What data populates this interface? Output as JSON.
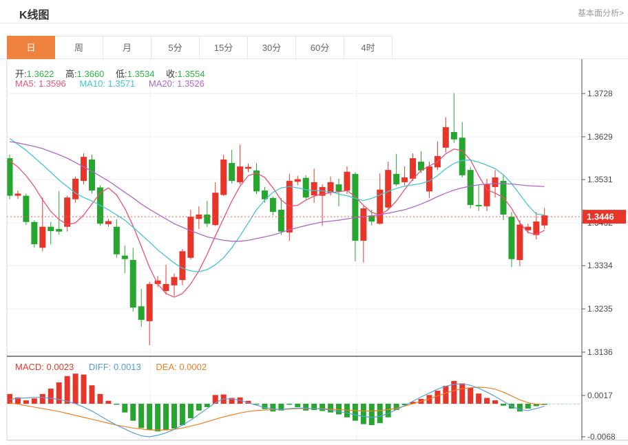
{
  "header": {
    "title": "K线图",
    "link": "基本面分析>"
  },
  "tabs": {
    "items": [
      "日",
      "周",
      "月",
      "5分",
      "15分",
      "30分",
      "60分",
      "4时"
    ],
    "selected": "日"
  },
  "info": {
    "ohlc": [
      {
        "label": "开:",
        "value": "1.3622"
      },
      {
        "label": "高:",
        "value": "1.3660"
      },
      {
        "label": "低:",
        "value": "1.3534"
      },
      {
        "label": "收:",
        "value": "1.3554"
      }
    ],
    "ma": [
      {
        "text": "MA5: 1.3596"
      },
      {
        "text": "MA10: 1.3571"
      },
      {
        "text": "MA20: 1.3526"
      }
    ]
  },
  "macd_info": [
    {
      "text": "MACD: 0.0023"
    },
    {
      "text": "DIFF: 0.0013"
    },
    {
      "text": "DEA: 0.0002"
    }
  ],
  "chart_data": {
    "type": "candlestick",
    "convention": "red=up green=down (CN)",
    "price_ticks": [
      "1.3728",
      "1.3629",
      "1.3531",
      "1.3432",
      "1.3334",
      "1.3235",
      "1.3136"
    ],
    "price_range": [
      1.3136,
      1.3728
    ],
    "current_price": "1.3446",
    "hidden_tick_under_badge": "1.3432",
    "grid": {
      "vertical_x": [
        218,
        518
      ]
    },
    "candles": [
      [
        1.358,
        1.3588,
        1.3486,
        1.3494
      ],
      [
        1.3494,
        1.3506,
        1.3487,
        1.3499
      ],
      [
        1.3494,
        1.3499,
        1.3427,
        1.3434
      ],
      [
        1.3434,
        1.3438,
        1.3375,
        1.3383
      ],
      [
        1.3375,
        1.349,
        1.3367,
        1.3423
      ],
      [
        1.3423,
        1.3434,
        1.3383,
        1.3413
      ],
      [
        1.3418,
        1.3505,
        1.3405,
        1.3412
      ],
      [
        1.3423,
        1.3494,
        1.3412,
        1.349
      ],
      [
        1.3486,
        1.3538,
        1.3478,
        1.3533
      ],
      [
        1.3528,
        1.3591,
        1.352,
        1.3583
      ],
      [
        1.3577,
        1.3588,
        1.3499,
        1.3506
      ],
      [
        1.3513,
        1.3518,
        1.3425,
        1.343
      ],
      [
        1.3429,
        1.3441,
        1.3423,
        1.3436
      ],
      [
        1.3423,
        1.344,
        1.3352,
        1.336
      ],
      [
        1.3357,
        1.338,
        1.3317,
        1.3349
      ],
      [
        1.3347,
        1.3375,
        1.3229,
        1.3238
      ],
      [
        1.3241,
        1.3281,
        1.3194,
        1.321
      ],
      [
        1.3207,
        1.3297,
        1.3152,
        1.3292
      ],
      [
        1.3292,
        1.331,
        1.3285,
        1.33
      ],
      [
        1.3276,
        1.3336,
        1.3268,
        1.3292
      ],
      [
        1.3289,
        1.3316,
        1.3265,
        1.3308
      ],
      [
        1.3301,
        1.3372,
        1.3289,
        1.3367
      ],
      [
        1.3352,
        1.3462,
        1.3348,
        1.3446
      ],
      [
        1.3441,
        1.347,
        1.3418,
        1.3451
      ],
      [
        1.3451,
        1.3482,
        1.3423,
        1.343
      ],
      [
        1.3427,
        1.3525,
        1.3425,
        1.3501
      ],
      [
        1.3496,
        1.3588,
        1.3493,
        1.3577
      ],
      [
        1.3569,
        1.3599,
        1.3522,
        1.3528
      ],
      [
        1.3525,
        1.3611,
        1.352,
        1.3561
      ],
      [
        1.3556,
        1.3568,
        1.3548,
        1.356
      ],
      [
        1.3552,
        1.3569,
        1.3498,
        1.3504
      ],
      [
        1.3506,
        1.3514,
        1.3478,
        1.3486
      ],
      [
        1.3489,
        1.3492,
        1.3449,
        1.3457
      ],
      [
        1.3462,
        1.3489,
        1.3404,
        1.3412
      ],
      [
        1.341,
        1.3544,
        1.3391,
        1.3528
      ],
      [
        1.3526,
        1.354,
        1.3518,
        1.3532
      ],
      [
        1.3535,
        1.3541,
        1.3486,
        1.349
      ],
      [
        1.3495,
        1.3556,
        1.3478,
        1.3525
      ],
      [
        1.3494,
        1.352,
        1.3425,
        1.3514
      ],
      [
        1.3501,
        1.3538,
        1.3495,
        1.3525
      ],
      [
        1.352,
        1.3533,
        1.347,
        1.3504
      ],
      [
        1.3506,
        1.3561,
        1.3498,
        1.3549
      ],
      [
        1.3544,
        1.3548,
        1.3344,
        1.3391
      ],
      [
        1.3391,
        1.347,
        1.3341,
        1.3465
      ],
      [
        1.3449,
        1.3462,
        1.3426,
        1.3435
      ],
      [
        1.343,
        1.3545,
        1.3428,
        1.3508
      ],
      [
        1.3467,
        1.3572,
        1.3462,
        1.3553
      ],
      [
        1.3544,
        1.359,
        1.3516,
        1.352
      ],
      [
        1.3525,
        1.3561,
        1.3518,
        1.3536
      ],
      [
        1.3533,
        1.3591,
        1.3528,
        1.358
      ],
      [
        1.3572,
        1.3596,
        1.3546,
        1.3552
      ],
      [
        1.3504,
        1.3572,
        1.3489,
        1.3561
      ],
      [
        1.3559,
        1.3619,
        1.3553,
        1.3585
      ],
      [
        1.3604,
        1.3674,
        1.3593,
        1.3651
      ],
      [
        1.364,
        1.3729,
        1.3615,
        1.3623
      ],
      [
        1.3627,
        1.3663,
        1.3536,
        1.3541
      ],
      [
        1.3553,
        1.356,
        1.3465,
        1.3473
      ],
      [
        1.3473,
        1.352,
        1.3459,
        1.347
      ],
      [
        1.347,
        1.3533,
        1.3459,
        1.352
      ],
      [
        1.3514,
        1.3553,
        1.349,
        1.3536
      ],
      [
        1.3528,
        1.3541,
        1.3438,
        1.3451
      ],
      [
        1.3446,
        1.3457,
        1.3331,
        1.3349
      ],
      [
        1.3347,
        1.3438,
        1.3333,
        1.3428
      ],
      [
        1.3415,
        1.343,
        1.3408,
        1.3423
      ],
      [
        1.3404,
        1.3457,
        1.3394,
        1.3435
      ],
      [
        1.3426,
        1.3466,
        1.3418,
        1.3449
      ]
    ],
    "ma5": [
      1.3574,
      1.356,
      1.354,
      1.3515,
      1.3485,
      1.3458,
      1.344,
      1.3428,
      1.3432,
      1.345,
      1.3475,
      1.35,
      1.3512,
      1.3496,
      1.3465,
      1.3425,
      1.3378,
      1.333,
      1.3292,
      1.327,
      1.3262,
      1.327,
      1.3292,
      1.3322,
      1.336,
      1.3402,
      1.3442,
      1.3482,
      1.3516,
      1.354,
      1.3546,
      1.3536,
      1.3512,
      1.3484,
      1.347,
      1.3472,
      1.3484,
      1.3493,
      1.3498,
      1.3501,
      1.3503,
      1.3506,
      1.3492,
      1.3472,
      1.3456,
      1.345,
      1.3462,
      1.3482,
      1.3508,
      1.3532,
      1.3552,
      1.3562,
      1.3572,
      1.359,
      1.3601,
      1.3597,
      1.3576,
      1.354,
      1.3508,
      1.35,
      1.349,
      1.3465,
      1.3432,
      1.341,
      1.3405,
      1.3415
    ],
    "ma10": [
      1.3625,
      1.3612,
      1.3598,
      1.3582,
      1.3565,
      1.3548,
      1.353,
      1.3515,
      1.35,
      1.349,
      1.3482,
      1.3472,
      1.3462,
      1.345,
      1.3438,
      1.3422,
      1.3405,
      1.3388,
      1.337,
      1.3355,
      1.334,
      1.3328,
      1.3322,
      1.332,
      1.3325,
      1.3336,
      1.3352,
      1.3375,
      1.3402,
      1.3432,
      1.3462,
      1.3484,
      1.3502,
      1.3512,
      1.3515,
      1.3512,
      1.3508,
      1.3506,
      1.3505,
      1.3503,
      1.3498,
      1.3494,
      1.3488,
      1.3483,
      1.3488,
      1.3496,
      1.3504,
      1.3511,
      1.3516,
      1.3519,
      1.3522,
      1.3528,
      1.354,
      1.3556,
      1.3568,
      1.3575,
      1.3576,
      1.3571,
      1.3564,
      1.3556,
      1.3542,
      1.3522,
      1.3497,
      1.3472,
      1.3452,
      1.345
    ],
    "ma20": [
      1.3618,
      1.3615,
      1.3611,
      1.3607,
      1.3602,
      1.3595,
      1.3588,
      1.358,
      1.357,
      1.356,
      1.355,
      1.3539,
      1.3528,
      1.3515,
      1.3502,
      1.3489,
      1.3475,
      1.3463,
      1.3452,
      1.3441,
      1.343,
      1.3422,
      1.3414,
      1.3407,
      1.34,
      1.3396,
      1.3392,
      1.339,
      1.339,
      1.3392,
      1.3396,
      1.34,
      1.3404,
      1.341,
      1.3416,
      1.3421,
      1.3426,
      1.343,
      1.3434,
      1.3436,
      1.3438,
      1.3441,
      1.3444,
      1.3446,
      1.3448,
      1.3451,
      1.3454,
      1.3458,
      1.3462,
      1.3468,
      1.3475,
      1.3483,
      1.3492,
      1.35,
      1.3507,
      1.3512,
      1.3516,
      1.3519,
      1.3521,
      1.3522,
      1.3522,
      1.3521,
      1.3519,
      1.3517,
      1.3516,
      1.3515
    ],
    "macd": {
      "ticks": [
        "0.0017",
        "-0.0068"
      ],
      "hist": [
        0.002,
        0.0013,
        0.0007,
        0.0011,
        0.002,
        0.0031,
        0.0044,
        0.0057,
        0.0062,
        0.006,
        0.0038,
        0.002,
        0.0006,
        -0.0002,
        -0.0018,
        -0.0035,
        -0.005,
        -0.0054,
        -0.0057,
        -0.0054,
        -0.0051,
        -0.0044,
        -0.003,
        -0.0014,
        -0.0007,
        0.0018,
        0.0019,
        0.0012,
        0.0013,
        0.0006,
        -0.0001,
        -0.0011,
        -0.0016,
        -0.0014,
        -0.0002,
        -0.0007,
        -0.0014,
        -0.0013,
        -0.0015,
        -0.0018,
        -0.0022,
        -0.0028,
        -0.0035,
        -0.0042,
        -0.0044,
        -0.004,
        -0.0028,
        -0.0013,
        -0.0003,
        0.0004,
        0.001,
        0.0018,
        0.0027,
        0.0037,
        0.0047,
        0.0042,
        0.0033,
        0.0021,
        0.0012,
        0.0007,
        -0.0004,
        -0.001,
        -0.0016,
        -0.001,
        -0.0005,
        -0.0002
      ],
      "diff": [
        0.0009,
        0.0011,
        0.0012,
        0.0013,
        0.0013,
        0.0011,
        0.0009,
        0.0005,
        0.0,
        -0.0007,
        -0.0015,
        -0.0025,
        -0.0035,
        -0.0044,
        -0.0052,
        -0.006,
        -0.0066,
        -0.0068,
        -0.0065,
        -0.006,
        -0.0053,
        -0.0044,
        -0.0034,
        -0.0022,
        -0.001,
        0.0002,
        0.001,
        0.001,
        0.0007,
        0.0002,
        -0.0003,
        -0.0008,
        -0.0011,
        -0.0012,
        -0.001,
        -0.0009,
        -0.0009,
        -0.001,
        -0.0011,
        -0.0013,
        -0.0016,
        -0.0019,
        -0.0023,
        -0.0026,
        -0.0028,
        -0.0026,
        -0.002,
        -0.0012,
        -0.0004,
        0.0005,
        0.0014,
        0.0022,
        0.003,
        0.0036,
        0.004,
        0.0041,
        0.0038,
        0.0032,
        0.0024,
        0.0015,
        0.0005,
        -0.0005,
        -0.0012,
        -0.0014,
        -0.001,
        -0.0005
      ],
      "dea": [
        0.0002,
        -0.0001,
        -0.0004,
        -0.0007,
        -0.001,
        -0.0013,
        -0.0016,
        -0.002,
        -0.0024,
        -0.0028,
        -0.0032,
        -0.0036,
        -0.004,
        -0.0044,
        -0.0047,
        -0.005,
        -0.0052,
        -0.0054,
        -0.0054,
        -0.0054,
        -0.0053,
        -0.005,
        -0.0046,
        -0.0042,
        -0.0037,
        -0.0032,
        -0.0027,
        -0.0023,
        -0.0019,
        -0.0016,
        -0.0014,
        -0.0013,
        -0.0012,
        -0.0012,
        -0.0011,
        -0.001,
        -0.001,
        -0.001,
        -0.001,
        -0.0011,
        -0.0012,
        -0.0013,
        -0.0014,
        -0.0015,
        -0.0015,
        -0.0014,
        -0.0012,
        -0.0009,
        -0.0005,
        0.0,
        0.0005,
        0.001,
        0.0016,
        0.0022,
        0.0027,
        0.0031,
        0.0033,
        0.0034,
        0.0033,
        0.003,
        0.0024,
        0.0016,
        0.0008,
        0.0002,
        -0.0001,
        -0.0002
      ]
    },
    "colors": {
      "up": "#e8352a",
      "down": "#26a52f",
      "ma5": "#ed4e74",
      "ma10": "#44c4d4",
      "ma20": "#b065c8",
      "diff": "#5a9fd6",
      "dea": "#ee7e20",
      "current": "#f0584e",
      "badge": "#e8352a",
      "grid": "#ededf2",
      "axis_text": "#4b4b50"
    }
  }
}
